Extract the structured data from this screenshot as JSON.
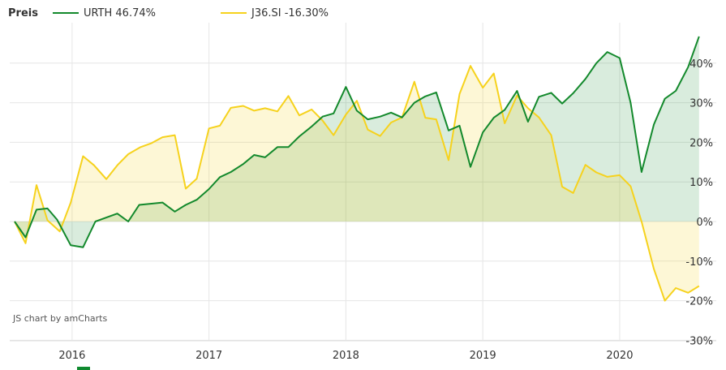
{
  "legend": {
    "title": "Preis"
  },
  "credit": "JS chart by amCharts",
  "colors": {
    "urth": "#13892c",
    "j36": "#f6d21d",
    "urth_fill": "rgba(19,137,44,0.16)",
    "j36_fill": "rgba(246,210,29,0.18)",
    "grid": "#e6e6e6"
  },
  "chart_data": {
    "type": "line",
    "ylim": [
      -32,
      48
    ],
    "y_ticks": [
      {
        "value": 40,
        "label": "40%"
      },
      {
        "value": 30,
        "label": "30%"
      },
      {
        "value": 20,
        "label": "20%"
      },
      {
        "value": 10,
        "label": "10%"
      },
      {
        "value": 0,
        "label": "0%"
      },
      {
        "value": -10,
        "label": "-10%"
      },
      {
        "value": -20,
        "label": "-20%"
      },
      {
        "value": -30,
        "label": "-30%"
      }
    ],
    "xlim": [
      2015.58,
      2020.67
    ],
    "x_ticks": [
      {
        "value": 2016,
        "label": "2016"
      },
      {
        "value": 2017,
        "label": "2017"
      },
      {
        "value": 2018,
        "label": "2018"
      },
      {
        "value": 2019,
        "label": "2019"
      },
      {
        "value": 2020,
        "label": "2020"
      }
    ],
    "series": [
      {
        "name": "URTH 46.74%",
        "points": [
          [
            2015.58,
            0
          ],
          [
            2015.66,
            -4
          ],
          [
            2015.74,
            3
          ],
          [
            2015.82,
            3.3
          ],
          [
            2015.89,
            0.5
          ],
          [
            2015.99,
            -6
          ],
          [
            2016.08,
            -6.5
          ],
          [
            2016.17,
            0
          ],
          [
            2016.25,
            1
          ],
          [
            2016.33,
            2
          ],
          [
            2016.41,
            0
          ],
          [
            2016.49,
            4.2
          ],
          [
            2016.58,
            4.5
          ],
          [
            2016.66,
            4.8
          ],
          [
            2016.75,
            2.5
          ],
          [
            2016.83,
            4.2
          ],
          [
            2016.91,
            5.5
          ],
          [
            2017.0,
            8.2
          ],
          [
            2017.08,
            11.2
          ],
          [
            2017.16,
            12.5
          ],
          [
            2017.25,
            14.5
          ],
          [
            2017.33,
            16.8
          ],
          [
            2017.41,
            16.2
          ],
          [
            2017.5,
            18.8
          ],
          [
            2017.58,
            18.8
          ],
          [
            2017.66,
            21.5
          ],
          [
            2017.75,
            24
          ],
          [
            2017.83,
            26.5
          ],
          [
            2017.91,
            27.3
          ],
          [
            2018.0,
            34
          ],
          [
            2018.08,
            28
          ],
          [
            2018.16,
            25.8
          ],
          [
            2018.25,
            26.5
          ],
          [
            2018.33,
            27.5
          ],
          [
            2018.41,
            26.3
          ],
          [
            2018.5,
            30
          ],
          [
            2018.58,
            31.6
          ],
          [
            2018.66,
            32.6
          ],
          [
            2018.75,
            23
          ],
          [
            2018.83,
            24.2
          ],
          [
            2018.91,
            13.8
          ],
          [
            2019.0,
            22.5
          ],
          [
            2019.08,
            26.2
          ],
          [
            2019.16,
            28.2
          ],
          [
            2019.25,
            33
          ],
          [
            2019.33,
            25.2
          ],
          [
            2019.41,
            31.5
          ],
          [
            2019.5,
            32.5
          ],
          [
            2019.58,
            29.8
          ],
          [
            2019.66,
            32.4
          ],
          [
            2019.75,
            36
          ],
          [
            2019.83,
            40
          ],
          [
            2019.91,
            42.8
          ],
          [
            2020.0,
            41.3
          ],
          [
            2020.08,
            30
          ],
          [
            2020.16,
            12.5
          ],
          [
            2020.25,
            24.5
          ],
          [
            2020.33,
            31
          ],
          [
            2020.41,
            33
          ],
          [
            2020.5,
            39
          ],
          [
            2020.58,
            46.74
          ]
        ]
      },
      {
        "name": "J36.SI -16.30%",
        "points": [
          [
            2015.58,
            0
          ],
          [
            2015.66,
            -5.5
          ],
          [
            2015.74,
            9.2
          ],
          [
            2015.82,
            0.3
          ],
          [
            2015.91,
            -2.5
          ],
          [
            2015.99,
            4.8
          ],
          [
            2016.08,
            16.5
          ],
          [
            2016.16,
            14.2
          ],
          [
            2016.25,
            10.7
          ],
          [
            2016.33,
            14.2
          ],
          [
            2016.41,
            17
          ],
          [
            2016.5,
            18.8
          ],
          [
            2016.58,
            19.8
          ],
          [
            2016.66,
            21.3
          ],
          [
            2016.75,
            21.8
          ],
          [
            2016.83,
            8.3
          ],
          [
            2016.91,
            10.8
          ],
          [
            2017.0,
            23.5
          ],
          [
            2017.08,
            24.2
          ],
          [
            2017.16,
            28.7
          ],
          [
            2017.25,
            29.2
          ],
          [
            2017.33,
            28
          ],
          [
            2017.41,
            28.6
          ],
          [
            2017.5,
            27.8
          ],
          [
            2017.58,
            31.7
          ],
          [
            2017.66,
            26.8
          ],
          [
            2017.75,
            28.3
          ],
          [
            2017.83,
            25.5
          ],
          [
            2017.91,
            21.8
          ],
          [
            2018.0,
            27
          ],
          [
            2018.08,
            30.5
          ],
          [
            2018.16,
            23.2
          ],
          [
            2018.25,
            21.6
          ],
          [
            2018.33,
            25
          ],
          [
            2018.41,
            26.3
          ],
          [
            2018.5,
            35.3
          ],
          [
            2018.58,
            26.2
          ],
          [
            2018.66,
            25.8
          ],
          [
            2018.75,
            15.5
          ],
          [
            2018.83,
            32.2
          ],
          [
            2018.91,
            39.3
          ],
          [
            2019.0,
            33.8
          ],
          [
            2019.08,
            37.4
          ],
          [
            2019.16,
            24.8
          ],
          [
            2019.25,
            31.8
          ],
          [
            2019.33,
            28.6
          ],
          [
            2019.41,
            26.3
          ],
          [
            2019.5,
            21.8
          ],
          [
            2019.58,
            8.8
          ],
          [
            2019.66,
            7.2
          ],
          [
            2019.75,
            14.3
          ],
          [
            2019.83,
            12.4
          ],
          [
            2019.91,
            11.3
          ],
          [
            2020.0,
            11.7
          ],
          [
            2020.08,
            8.9
          ],
          [
            2020.16,
            0
          ],
          [
            2020.25,
            -12
          ],
          [
            2020.33,
            -20
          ],
          [
            2020.41,
            -16.8
          ],
          [
            2020.5,
            -18
          ],
          [
            2020.58,
            -16.3
          ]
        ]
      }
    ]
  }
}
